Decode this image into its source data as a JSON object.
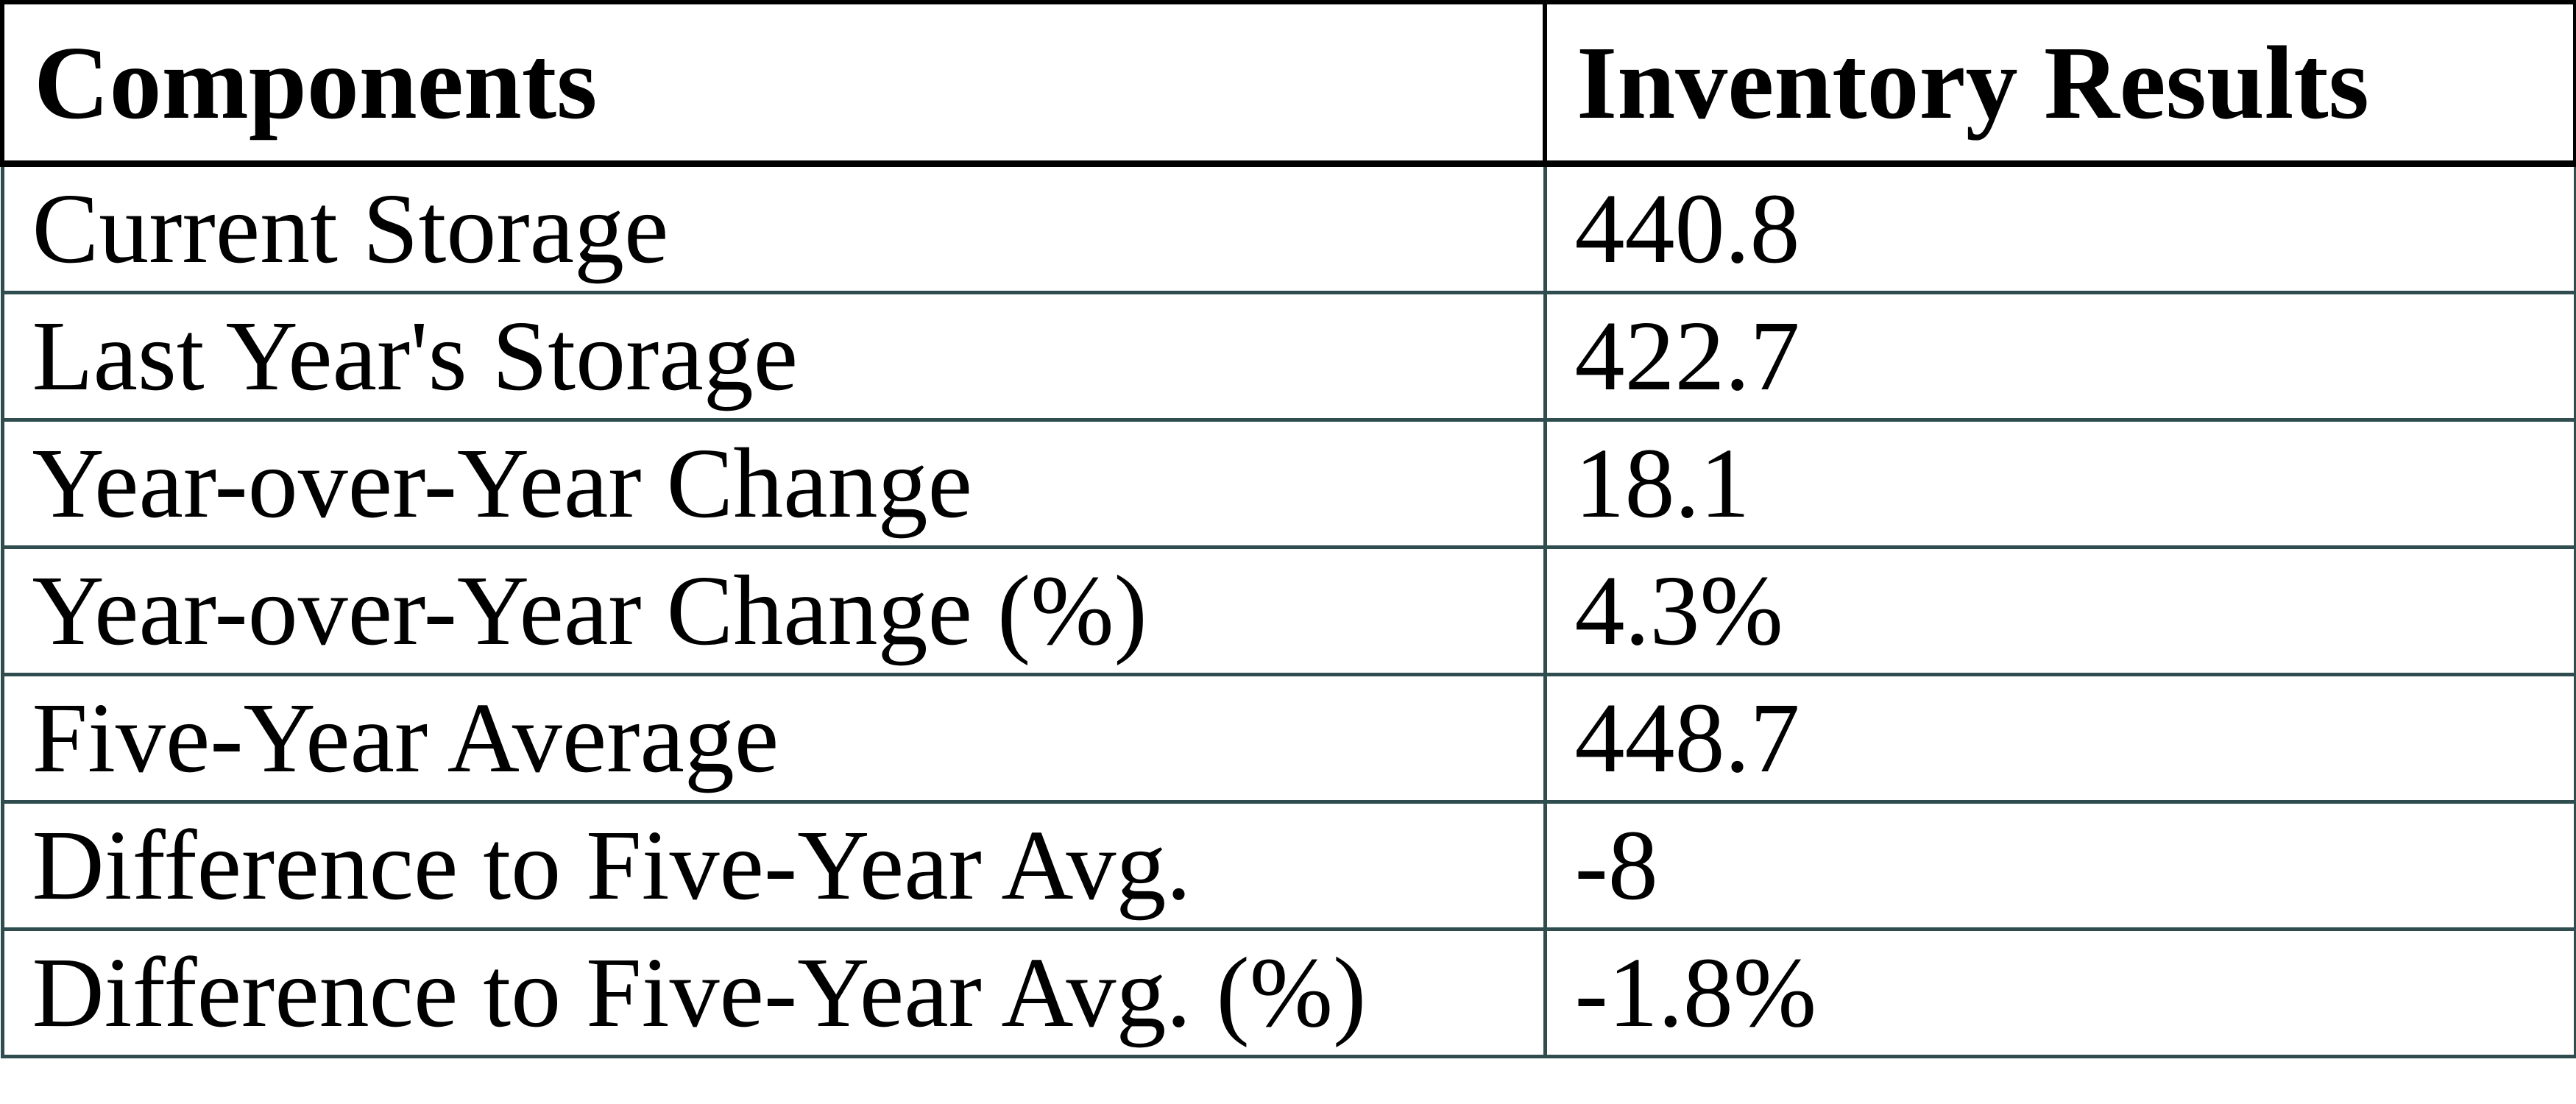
{
  "table": {
    "columns": [
      {
        "label": "Components"
      },
      {
        "label": "Inventory Results"
      }
    ],
    "rows": [
      {
        "component": "Current Storage",
        "result": "440.8"
      },
      {
        "component": "Last Year's Storage",
        "result": "422.7"
      },
      {
        "component": "Year-over-Year Change",
        "result": "18.1"
      },
      {
        "component": "Year-over-Year Change (%)",
        "result": "4.3%"
      },
      {
        "component": "Five-Year Average",
        "result": "448.7"
      },
      {
        "component": "Difference to Five-Year Avg.",
        "result": "-8"
      },
      {
        "component": "Difference to Five-Year Avg. (%)",
        "result": "-1.8%"
      }
    ]
  },
  "colors": {
    "background": "#FFFFFF",
    "text": "#000000",
    "header_border": "#000000",
    "body_border": "#2F4D4F"
  },
  "chart_data": {
    "type": "table",
    "title": "",
    "columns": [
      "Components",
      "Inventory Results"
    ],
    "rows": [
      [
        "Current Storage",
        "440.8"
      ],
      [
        "Last Year's Storage",
        "422.7"
      ],
      [
        "Year-over-Year Change",
        "18.1"
      ],
      [
        "Year-over-Year Change (%)",
        "4.3%"
      ],
      [
        "Five-Year Average",
        "448.7"
      ],
      [
        "Difference to Five-Year Avg.",
        "-8"
      ],
      [
        "Difference to Five-Year Avg. (%)",
        "-1.8%"
      ]
    ],
    "numeric_values": {
      "current_storage": 440.8,
      "last_year_storage": 422.7,
      "yoy_change": 18.1,
      "yoy_change_pct": 4.3,
      "five_year_average": 448.7,
      "diff_to_five_year_avg": -8,
      "diff_to_five_year_avg_pct": -1.8
    }
  }
}
